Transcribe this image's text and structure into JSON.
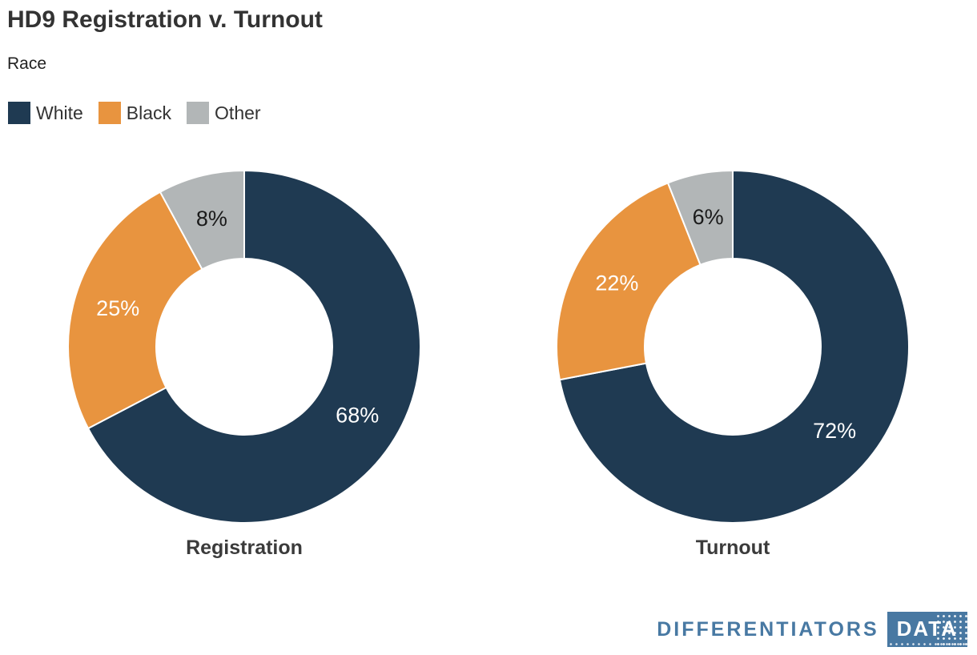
{
  "header": {
    "title": "HD9 Registration v. Turnout",
    "subtitle": "Race"
  },
  "legend": {
    "items": [
      {
        "label": "White",
        "color": "#1F3A52"
      },
      {
        "label": "Black",
        "color": "#E8943F"
      },
      {
        "label": "Other",
        "color": "#B2B6B7"
      }
    ]
  },
  "chart_data": [
    {
      "type": "pie",
      "variant": "donut",
      "title": "Registration",
      "categories": [
        "White",
        "Black",
        "Other"
      ],
      "values": [
        68,
        25,
        8
      ],
      "labels": [
        "68%",
        "25%",
        "8%"
      ],
      "colors": [
        "#1F3A52",
        "#E8943F",
        "#B2B6B7"
      ],
      "label_text_colors": [
        "#FFFFFF",
        "#FFFFFF",
        "#1A1A1A"
      ],
      "start_angle_deg": 0,
      "clockwise": true,
      "inner_radius_ratio": 0.5
    },
    {
      "type": "pie",
      "variant": "donut",
      "title": "Turnout",
      "categories": [
        "White",
        "Black",
        "Other"
      ],
      "values": [
        72,
        22,
        6
      ],
      "labels": [
        "72%",
        "22%",
        "6%"
      ],
      "colors": [
        "#1F3A52",
        "#E8943F",
        "#B2B6B7"
      ],
      "label_text_colors": [
        "#FFFFFF",
        "#FFFFFF",
        "#1A1A1A"
      ],
      "start_angle_deg": 0,
      "clockwise": true,
      "inner_radius_ratio": 0.5
    }
  ],
  "footer": {
    "brand": "DIFFERENTIATORS",
    "badge": "DATA",
    "brand_color": "#4879A3",
    "badge_bg": "#4878A2",
    "badge_text_color": "#FFFFFF"
  }
}
